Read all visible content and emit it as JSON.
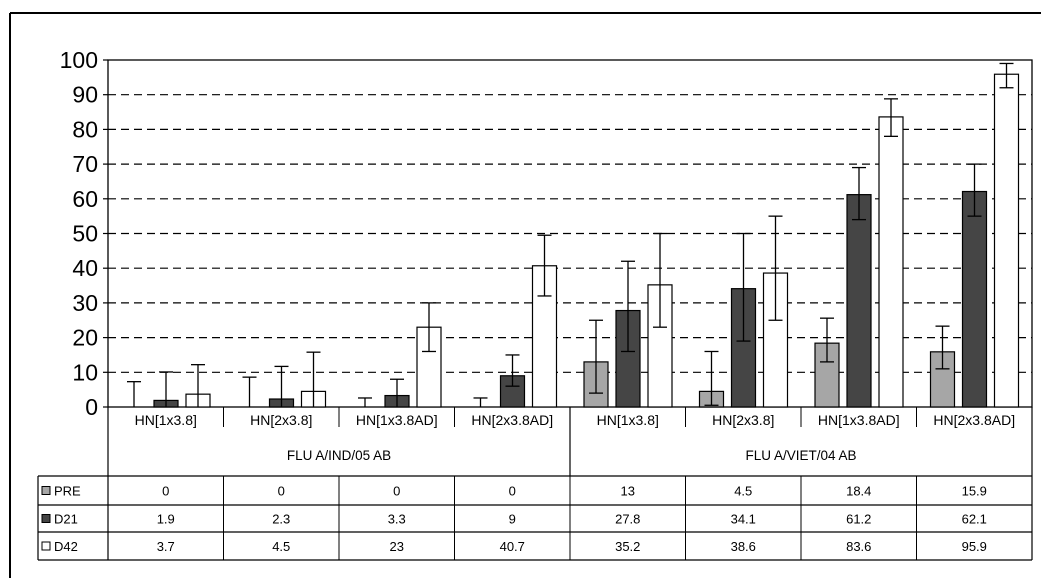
{
  "chart_data": {
    "type": "bar",
    "title": "",
    "xlabel": "",
    "ylabel": "",
    "ylim": [
      0,
      100
    ],
    "yticks": [
      0,
      10,
      20,
      30,
      40,
      50,
      60,
      70,
      80,
      90,
      100
    ],
    "grid": "dashed horizontal",
    "categories": [
      "HN[1x3.8]",
      "HN[2x3.8]",
      "HN[1x3.8AD]",
      "HN[2x3.8AD]",
      "HN[1x3.8]",
      "HN[2x3.8]",
      "HN[1x3.8AD]",
      "HN[2x3.8AD]"
    ],
    "groups": [
      {
        "label": "FLU A/IND/05 AB",
        "span": 4
      },
      {
        "label": "FLU A/VIET/04 AB",
        "span": 4
      }
    ],
    "series": [
      {
        "name": "PRE",
        "color": "#a6a6a6",
        "values": [
          0,
          0,
          0,
          0,
          13,
          4.5,
          18.4,
          15.9
        ],
        "err_low": [
          0,
          0,
          0,
          0,
          4,
          0.5,
          13,
          11
        ],
        "err_high": [
          7.3,
          8.6,
          2.6,
          2.6,
          25,
          16,
          25.6,
          23.3
        ]
      },
      {
        "name": "D21",
        "color": "#454545",
        "values": [
          1.9,
          2.3,
          3.3,
          9,
          27.8,
          34.1,
          61.2,
          62.1
        ],
        "err_low": [
          0,
          0,
          0,
          6,
          16,
          19,
          54,
          55
        ],
        "err_high": [
          10.1,
          11.7,
          8,
          15,
          42,
          50,
          69,
          70
        ]
      },
      {
        "name": "D42",
        "color": "#ffffff",
        "values": [
          3.7,
          4.5,
          23,
          40.7,
          35.2,
          38.6,
          83.6,
          95.9
        ],
        "err_low": [
          0,
          0,
          16,
          32,
          23,
          25,
          78,
          92
        ],
        "err_high": [
          12.2,
          15.8,
          30,
          49.5,
          50,
          55,
          88.8,
          99
        ]
      }
    ],
    "table": {
      "rows": [
        {
          "label": "PRE",
          "cells": [
            "0",
            "0",
            "0",
            "0",
            "13",
            "4.5",
            "18.4",
            "15.9"
          ]
        },
        {
          "label": "D21",
          "cells": [
            "1.9",
            "2.3",
            "3.3",
            "9",
            "27.8",
            "34.1",
            "61.2",
            "62.1"
          ]
        },
        {
          "label": "D42",
          "cells": [
            "3.7",
            "4.5",
            "23",
            "40.7",
            "35.2",
            "38.6",
            "83.6",
            "95.9"
          ]
        }
      ]
    }
  }
}
